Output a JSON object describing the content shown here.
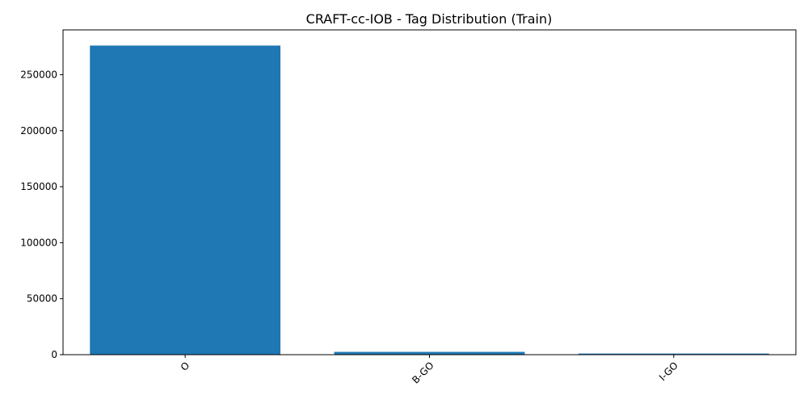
{
  "chart_data": {
    "type": "bar",
    "title": "CRAFT-cc-IOB - Tag Distribution (Train)",
    "xlabel": "",
    "ylabel": "",
    "categories": [
      "O",
      "B-GO",
      "I-GO"
    ],
    "values": [
      276000,
      2500,
      1000
    ],
    "ylim": [
      0,
      290000
    ],
    "yticks": [
      0,
      50000,
      100000,
      150000,
      200000,
      250000
    ],
    "xtick_rotation_deg": 45,
    "bar_color": "#1f77b4",
    "grid": false,
    "legend": "none"
  }
}
